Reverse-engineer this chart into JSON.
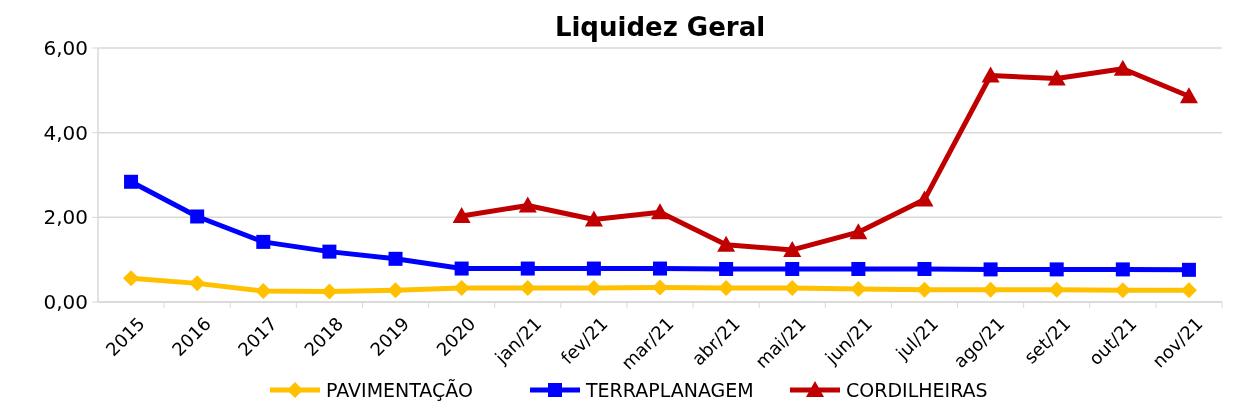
{
  "chart_data": {
    "type": "line",
    "title": "Liquidez Geral",
    "categories": [
      "2015",
      "2016",
      "2017",
      "2018",
      "2019",
      "2020",
      "jan/21",
      "fev/21",
      "mar/21",
      "abr/21",
      "mai/21",
      "jun/21",
      "jul/21",
      "ago/21",
      "set/21",
      "out/21",
      "nov/21"
    ],
    "series": [
      {
        "name": "PAVIMENTAÇÃO",
        "color": "#ffc000",
        "marker": "diamond",
        "values": [
          0.56,
          0.44,
          0.26,
          0.25,
          0.28,
          0.33,
          0.33,
          0.33,
          0.34,
          0.33,
          0.33,
          0.31,
          0.29,
          0.29,
          0.29,
          0.28,
          0.28
        ]
      },
      {
        "name": "TERRAPLANAGEM",
        "color": "#0000ff",
        "marker": "square",
        "values": [
          2.84,
          2.02,
          1.42,
          1.19,
          1.02,
          0.79,
          0.79,
          0.79,
          0.79,
          0.78,
          0.78,
          0.78,
          0.78,
          0.77,
          0.77,
          0.77,
          0.76
        ]
      },
      {
        "name": "CORDILHEIRAS",
        "color": "#c00000",
        "marker": "triangle",
        "values": [
          null,
          null,
          null,
          null,
          null,
          2.03,
          2.28,
          1.95,
          2.12,
          1.35,
          1.23,
          1.65,
          2.42,
          5.35,
          5.28,
          5.51,
          4.86
        ]
      }
    ],
    "ylim": [
      0,
      6
    ],
    "yticks": [
      {
        "value": 0,
        "label": "0,00"
      },
      {
        "value": 2,
        "label": "2,00"
      },
      {
        "value": 4,
        "label": "4,00"
      },
      {
        "value": 6,
        "label": "6,00"
      }
    ],
    "grid": "y",
    "legend": "bottom"
  }
}
